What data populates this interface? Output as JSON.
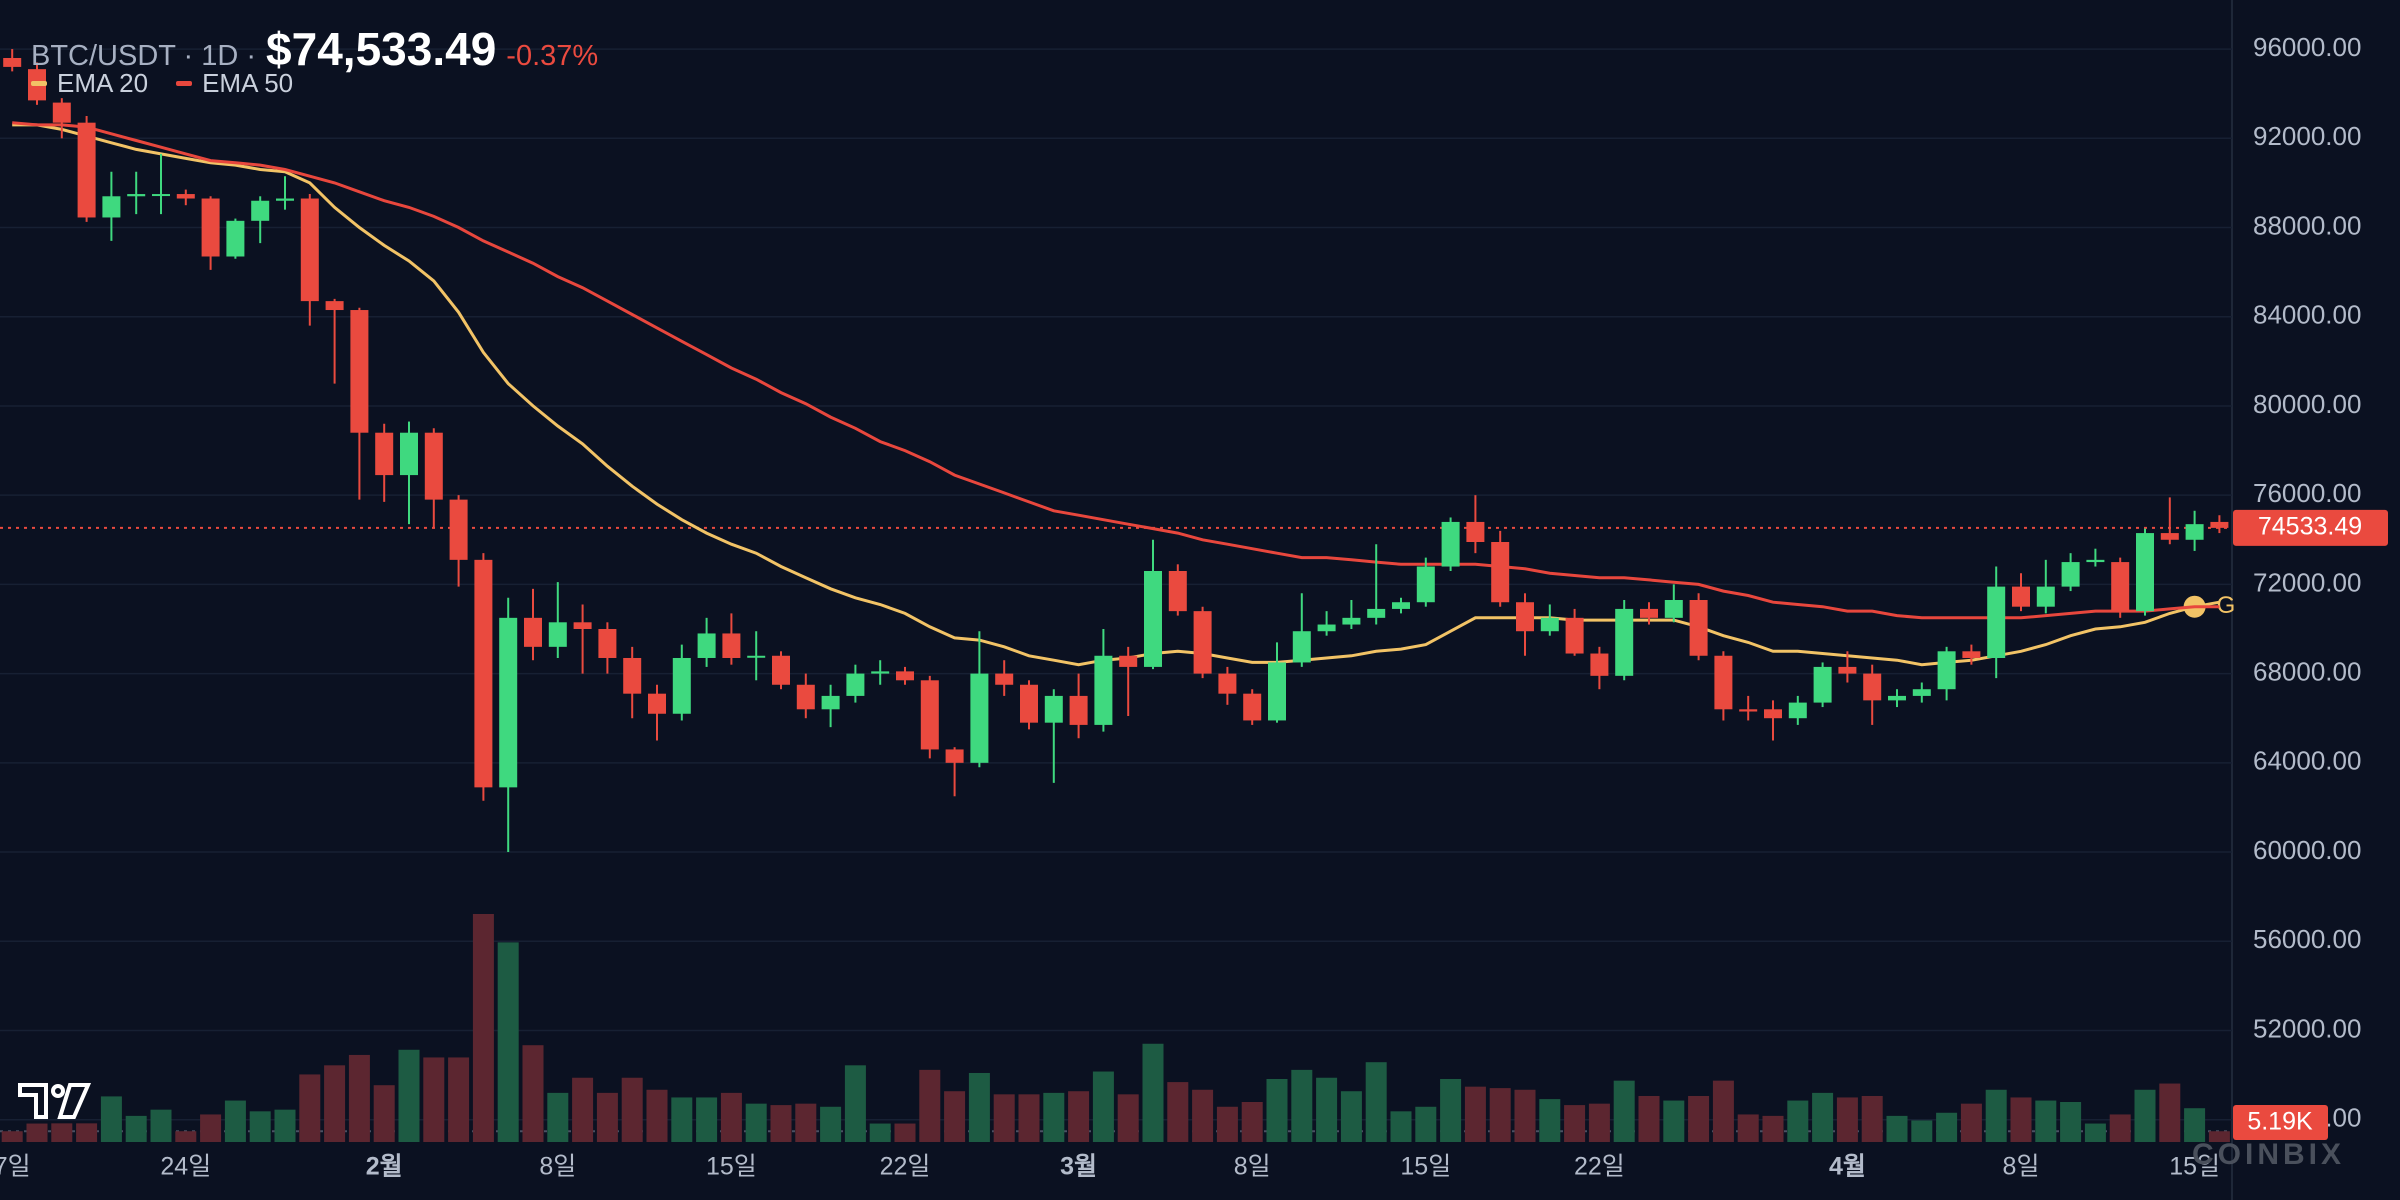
{
  "chart_data": {
    "type": "candlestick",
    "title": "BTC/USDT · 1D ·",
    "last_price": 74533.49,
    "last_price_label": "$74,533.49",
    "change_label": "-0.37%",
    "watermark": "COINBIX",
    "up_color": "#3fd97f",
    "down_color": "#ea4a3f",
    "categories": [
      "7일",
      null,
      null,
      null,
      null,
      null,
      null,
      "24일",
      null,
      null,
      null,
      null,
      null,
      null,
      null,
      "2월",
      null,
      null,
      null,
      null,
      null,
      null,
      "8일",
      null,
      null,
      null,
      null,
      null,
      null,
      "15일",
      null,
      null,
      null,
      null,
      null,
      null,
      "22일",
      null,
      null,
      null,
      null,
      null,
      null,
      "3월",
      null,
      null,
      null,
      null,
      null,
      null,
      "8일",
      null,
      null,
      null,
      null,
      null,
      null,
      "15일",
      null,
      null,
      null,
      null,
      null,
      null,
      "22일",
      null,
      null,
      null,
      null,
      null,
      null,
      null,
      null,
      null,
      "4월",
      null,
      null,
      null,
      null,
      null,
      null,
      "8일",
      null,
      null,
      null,
      null,
      null,
      null,
      "15일",
      null
    ],
    "open": [
      95600,
      95100,
      93600,
      92700,
      88450,
      89400,
      89500,
      89500,
      89300,
      86700,
      88300,
      89200,
      89300,
      84700,
      84300,
      78800,
      76900,
      78800,
      75800,
      73100,
      62900,
      70500,
      69200,
      70300,
      70000,
      68700,
      67100,
      66200,
      68700,
      69800,
      68800,
      68800,
      67500,
      66400,
      67000,
      68000,
      68100,
      67700,
      64600,
      64000,
      68000,
      67500,
      65800,
      67000,
      65700,
      68800,
      68300,
      72600,
      70800,
      68000,
      67100,
      65900,
      68500,
      69900,
      70200,
      70500,
      70900,
      71200,
      72800,
      74800,
      73900,
      71200,
      69900,
      70500,
      68900,
      67900,
      70900,
      70500,
      71300,
      68800,
      66400,
      66400,
      66000,
      66700,
      68300,
      68000,
      66800,
      67000,
      67300,
      69000,
      68700,
      71900,
      71000,
      71900,
      73000,
      73000,
      70800,
      74300,
      74000,
      74800
    ],
    "high": [
      96000,
      95400,
      93800,
      93000,
      90500,
      90500,
      91300,
      89700,
      89400,
      88400,
      89400,
      90300,
      89500,
      84800,
      84400,
      79200,
      79300,
      79000,
      76000,
      73400,
      71400,
      71800,
      72100,
      71100,
      70300,
      69200,
      67500,
      69300,
      70500,
      70700,
      69900,
      69000,
      68000,
      67500,
      68400,
      68600,
      68300,
      67900,
      64700,
      69900,
      68600,
      67700,
      67300,
      68000,
      70000,
      69200,
      74000,
      72900,
      71000,
      68300,
      67300,
      69400,
      71600,
      70800,
      71300,
      73800,
      71400,
      73200,
      75000,
      76000,
      74400,
      71600,
      71100,
      70900,
      69200,
      71300,
      71200,
      72000,
      71600,
      69000,
      67000,
      66800,
      67000,
      68500,
      69000,
      68400,
      67300,
      67600,
      69200,
      69300,
      72800,
      72500,
      73100,
      73400,
      73600,
      73200,
      74500,
      75900,
      75300,
      75100
    ],
    "low": [
      95000,
      93500,
      92000,
      88250,
      87400,
      88600,
      88600,
      89000,
      86100,
      86600,
      87300,
      88800,
      83600,
      81000,
      75800,
      75700,
      74700,
      74500,
      71900,
      62300,
      60000,
      68600,
      68700,
      68000,
      68000,
      66000,
      65000,
      65900,
      68300,
      68400,
      67700,
      67300,
      66000,
      65600,
      66700,
      67500,
      67500,
      64200,
      62500,
      63800,
      67000,
      65500,
      63100,
      65100,
      65400,
      66100,
      68200,
      70600,
      67800,
      66600,
      65700,
      65800,
      68300,
      69700,
      70000,
      70200,
      70700,
      71000,
      72600,
      73400,
      71000,
      68800,
      69700,
      68800,
      67300,
      67700,
      70200,
      70300,
      68600,
      65900,
      65900,
      65000,
      65700,
      66500,
      67600,
      65700,
      66500,
      66700,
      66800,
      68400,
      67800,
      70800,
      70700,
      71700,
      72800,
      70500,
      70600,
      73800,
      73500,
      74300
    ],
    "close": [
      95200,
      93700,
      92700,
      88450,
      89400,
      89500,
      89500,
      89300,
      86700,
      88300,
      89200,
      89300,
      84700,
      84300,
      78800,
      76900,
      78800,
      75800,
      73100,
      62900,
      70500,
      69200,
      70300,
      70000,
      68700,
      67100,
      66200,
      68700,
      69800,
      68700,
      68800,
      67500,
      66400,
      67000,
      68000,
      68100,
      67700,
      64600,
      64000,
      68000,
      67500,
      65800,
      67000,
      65700,
      68800,
      68300,
      72600,
      70800,
      68000,
      67100,
      65900,
      68500,
      69900,
      70200,
      70500,
      70900,
      71200,
      72800,
      74800,
      73900,
      71200,
      69900,
      70500,
      68900,
      67900,
      70900,
      70500,
      71300,
      68800,
      66400,
      66300,
      66000,
      66700,
      68300,
      68000,
      66800,
      67000,
      67300,
      69000,
      68700,
      71900,
      71000,
      71900,
      73000,
      73100,
      70800,
      74300,
      74000,
      74700,
      74533.49
    ],
    "overlays": [
      {
        "name": "EMA 20",
        "color": "#f2c366",
        "marker": "G",
        "values": [
          92600,
          92600,
          92400,
          92100,
          91800,
          91500,
          91300,
          91100,
          90900,
          90800,
          90600,
          90500,
          90000,
          88900,
          88000,
          87200,
          86500,
          85600,
          84200,
          82400,
          81000,
          80000,
          79100,
          78300,
          77300,
          76400,
          75600,
          74900,
          74300,
          73800,
          73400,
          72800,
          72300,
          71800,
          71400,
          71100,
          70700,
          70100,
          69600,
          69500,
          69200,
          68800,
          68600,
          68400,
          68600,
          68700,
          68900,
          69000,
          68900,
          68700,
          68500,
          68500,
          68600,
          68700,
          68800,
          69000,
          69100,
          69300,
          69900,
          70500,
          70500,
          70500,
          70500,
          70400,
          70400,
          70400,
          70400,
          70400,
          70100,
          69700,
          69400,
          69000,
          69000,
          68900,
          68800,
          68700,
          68600,
          68400,
          68500,
          68600,
          68800,
          69000,
          69300,
          69700,
          70000,
          70100,
          70300,
          70700,
          71000,
          71200
        ]
      },
      {
        "name": "EMA 50",
        "color": "#e8473d",
        "values": [
          92700,
          92600,
          92600,
          92500,
          92200,
          91900,
          91600,
          91300,
          91000,
          90900,
          90800,
          90600,
          90300,
          90000,
          89600,
          89200,
          88900,
          88500,
          88000,
          87400,
          86900,
          86400,
          85800,
          85300,
          84700,
          84100,
          83500,
          82900,
          82300,
          81700,
          81200,
          80600,
          80100,
          79500,
          79000,
          78400,
          78000,
          77500,
          76900,
          76500,
          76100,
          75700,
          75300,
          75100,
          74900,
          74700,
          74500,
          74300,
          74000,
          73800,
          73600,
          73400,
          73200,
          73200,
          73100,
          73000,
          72900,
          72900,
          72900,
          72900,
          72800,
          72700,
          72500,
          72400,
          72300,
          72300,
          72200,
          72100,
          72000,
          71700,
          71500,
          71200,
          71100,
          71000,
          70800,
          70800,
          70600,
          70500,
          70500,
          70500,
          70500,
          70500,
          70600,
          70700,
          70800,
          70800,
          70800,
          70900,
          71000,
          71000
        ]
      }
    ],
    "volume": {
      "up_color": "#1d5b43",
      "down_color": "#5c2630",
      "values": [
        5200,
        8900,
        9000,
        9000,
        22000,
        12600,
        15600,
        5200,
        13300,
        20000,
        14800,
        15600,
        32600,
        37000,
        42000,
        27400,
        44500,
        40800,
        40800,
        110000,
        96300,
        46700,
        23700,
        31000,
        23700,
        31000,
        25200,
        21500,
        21500,
        23700,
        18500,
        17800,
        18500,
        17000,
        37000,
        8900,
        8900,
        34800,
        24500,
        33300,
        23000,
        23000,
        23700,
        24500,
        34000,
        23000,
        47400,
        28900,
        25200,
        17000,
        19300,
        30400,
        34800,
        31000,
        24500,
        38500,
        14800,
        17000,
        30400,
        26700,
        26000,
        25200,
        20700,
        17800,
        18500,
        29600,
        22200,
        20000,
        22200,
        29600,
        13300,
        12600,
        20000,
        23700,
        21500,
        22200,
        12600,
        10400,
        14100,
        18500,
        25200,
        21500,
        20000,
        19300,
        8900,
        13300,
        25200,
        28200,
        16300,
        5190
      ],
      "value_labels": [
        null,
        null,
        null,
        null,
        null,
        null,
        null,
        null,
        null,
        null,
        null,
        null,
        null,
        null,
        null,
        null,
        null,
        null,
        null,
        null,
        null,
        null,
        null,
        null,
        null,
        null,
        null,
        null,
        null,
        null,
        null,
        null,
        null,
        null,
        null,
        null,
        null,
        null,
        null,
        null,
        null,
        null,
        null,
        null,
        null,
        null,
        null,
        null,
        null,
        null,
        null,
        null,
        null,
        null,
        null,
        null,
        null,
        null,
        null,
        null,
        null,
        null,
        null,
        null,
        null,
        null,
        null,
        null,
        null,
        null,
        null,
        null,
        null,
        null,
        null,
        null,
        null,
        null,
        null,
        null,
        null,
        null,
        null,
        null,
        null,
        null,
        null,
        null,
        null,
        "5.19K"
      ]
    },
    "ylim": [
      47000,
      98200
    ],
    "yticks": [
      {
        "value": 48000,
        "label": "48000.00"
      },
      {
        "value": 52000,
        "label": "52000.00"
      },
      {
        "value": 56000,
        "label": "56000.00"
      },
      {
        "value": 60000,
        "label": "60000.00"
      },
      {
        "value": 64000,
        "label": "64000.00"
      },
      {
        "value": 68000,
        "label": "68000.00"
      },
      {
        "value": 72000,
        "label": "72000.00"
      },
      {
        "value": 76000,
        "label": "76000.00"
      },
      {
        "value": 80000,
        "label": "80000.00"
      },
      {
        "value": 84000,
        "label": "84000.00"
      },
      {
        "value": 88000,
        "label": "88000.00"
      },
      {
        "value": 92000,
        "label": "92000.00"
      },
      {
        "value": 96000,
        "label": "96000.00"
      }
    ],
    "grid": true
  }
}
